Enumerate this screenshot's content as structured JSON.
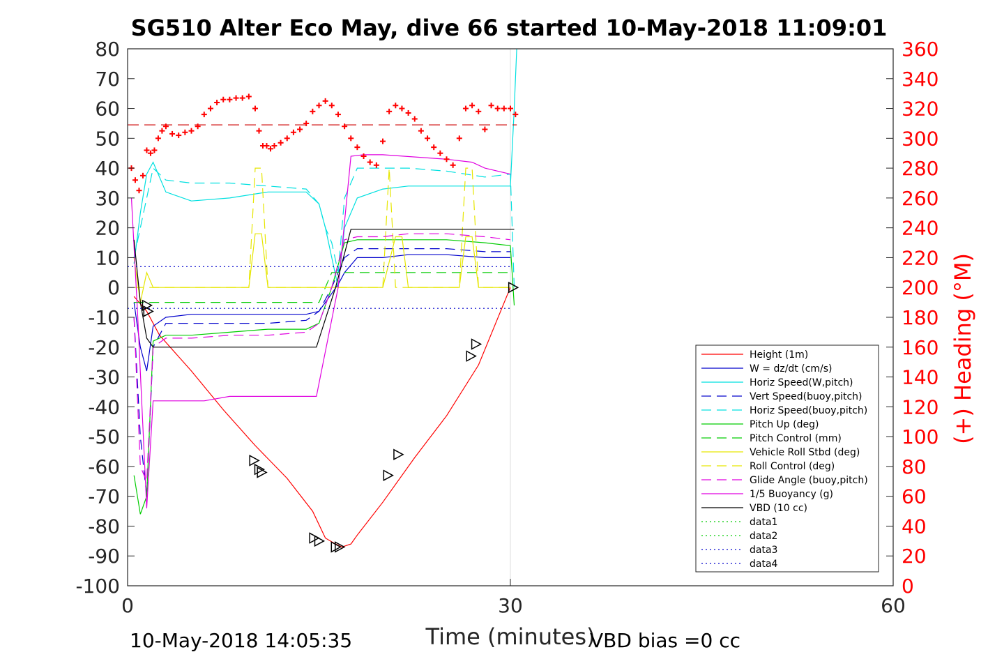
{
  "chart_data": {
    "type": "line",
    "title": "SG510 Alter Eco May, dive 66 started 10-May-2018 11:09:01",
    "xlabel": "Time (minutes)",
    "y2label": "(+) Heading (°M)",
    "xlim": [
      0,
      60
    ],
    "ylim": [
      -100,
      80
    ],
    "y2lim": [
      0,
      360
    ],
    "x_ticks": [
      "0",
      "30",
      "60"
    ],
    "y_ticks": [
      "80",
      "70",
      "60",
      "50",
      "40",
      "30",
      "20",
      "10",
      "0",
      "-10",
      "-20",
      "-30",
      "-40",
      "-50",
      "-60",
      "-70",
      "-80",
      "-90",
      "-100"
    ],
    "y2_ticks": [
      "360",
      "340",
      "320",
      "300",
      "280",
      "260",
      "240",
      "220",
      "200",
      "180",
      "160",
      "140",
      "120",
      "100",
      "80",
      "60",
      "40",
      "20",
      "0"
    ],
    "grid": "x-only",
    "legend_position": "lower-right",
    "footer_left": "10-May-2018 14:05:35",
    "footer_right": "VBD bias =0 cc",
    "series": [
      {
        "name": "Height (1m)",
        "color": "#ff0000",
        "dash": "solid",
        "x": [
          0.5,
          1.5,
          2.5,
          5,
          7.5,
          10,
          12.5,
          14.5,
          15.5,
          16.3,
          16.8,
          17.5,
          18,
          20,
          22.5,
          25,
          27.5,
          30
        ],
        "y": [
          -3,
          -8,
          -16,
          -28,
          -41,
          -53,
          -64,
          -75,
          -84,
          -86,
          -87,
          -86,
          -83,
          -72,
          -57,
          -43,
          -26,
          0
        ]
      },
      {
        "name": "W = dz/dt (cm/s)",
        "color": "#0000cc",
        "dash": "solid",
        "x": [
          0.5,
          1,
          1.5,
          2,
          3,
          5,
          8,
          11,
          14,
          15,
          16,
          16.5,
          17,
          18,
          20,
          22,
          25,
          28,
          30
        ],
        "y": [
          -5,
          -20,
          -28,
          -13,
          -10,
          -9,
          -9,
          -9,
          -9,
          -8,
          -2,
          1,
          5,
          10,
          10,
          11,
          11,
          10,
          10
        ]
      },
      {
        "name": "Horiz Speed(W,pitch)",
        "color": "#00e0e0",
        "dash": "solid",
        "x": [
          0.5,
          1,
          1.5,
          2,
          3,
          5,
          8,
          11,
          14,
          15,
          15.5,
          16,
          16.5,
          17,
          18,
          20,
          22,
          25,
          28,
          30,
          30.3,
          30.5
        ],
        "y": [
          8,
          25,
          38,
          42,
          32,
          29,
          30,
          32,
          32,
          28,
          20,
          10,
          0,
          20,
          30,
          33,
          34,
          34,
          34,
          34,
          60,
          80
        ]
      },
      {
        "name": "Vert Speed(buoy,pitch)",
        "color": "#0000cc",
        "dash": "dash",
        "x": [
          0.5,
          1,
          1.5,
          2,
          3,
          5,
          8,
          11,
          14,
          15,
          16,
          17,
          18,
          20,
          22,
          25,
          28,
          30
        ],
        "y": [
          -10,
          -50,
          -70,
          -20,
          -12,
          -12,
          -12,
          -12,
          -11,
          -8,
          0,
          10,
          13,
          13,
          13,
          13,
          12,
          12
        ]
      },
      {
        "name": "Horiz Speed(buoy,pitch)",
        "color": "#00e0e0",
        "dash": "dash",
        "x": [
          0.5,
          1,
          1.5,
          2,
          3,
          5,
          8,
          11,
          14,
          15,
          15.5,
          16,
          16.5,
          17,
          18,
          20,
          22,
          25,
          28,
          30,
          30.3
        ],
        "y": [
          10,
          20,
          30,
          40,
          36,
          35,
          35,
          34,
          33,
          28,
          20,
          15,
          5,
          30,
          40,
          40,
          40,
          39,
          37,
          38,
          0
        ]
      },
      {
        "name": "Pitch Up (deg)",
        "color": "#00cc00",
        "dash": "solid",
        "x": [
          0.5,
          1,
          1.5,
          2,
          3,
          5,
          8,
          11,
          14,
          15,
          16,
          17,
          18,
          20,
          22,
          25,
          28,
          30,
          30.3
        ],
        "y": [
          -63,
          -76,
          -70,
          -18,
          -16,
          -16,
          -15,
          -14,
          -14,
          -12,
          0,
          15,
          16,
          16,
          16,
          16,
          15,
          14,
          -6
        ]
      },
      {
        "name": "Pitch Control (mm)",
        "color": "#00cc00",
        "dash": "dash",
        "x": [
          0.5,
          1,
          1.5,
          2,
          5,
          10,
          15,
          16,
          17,
          20,
          25,
          30
        ],
        "y": [
          -5,
          -5,
          -5,
          -5,
          -5,
          -5,
          -5,
          5,
          5,
          5,
          5,
          5
        ]
      },
      {
        "name": "Vehicle Roll Stbd (deg)",
        "color": "#e6e600",
        "dash": "solid",
        "x": [
          0.5,
          1,
          1.5,
          2,
          3,
          5,
          9.5,
          10,
          10.5,
          11,
          14,
          15,
          16,
          20,
          21,
          21.5,
          22,
          26,
          26.5,
          27,
          27.5,
          30
        ],
        "y": [
          10,
          -5,
          5,
          0,
          0,
          0,
          0,
          18,
          18,
          0,
          0,
          0,
          0,
          0,
          17,
          17,
          0,
          0,
          17,
          17,
          0,
          0
        ]
      },
      {
        "name": "Roll Control (deg)",
        "color": "#e6e600",
        "dash": "dash",
        "x": [
          0.5,
          1,
          2,
          3,
          9.5,
          10,
          10.5,
          11,
          15,
          16,
          20,
          20.5,
          21,
          26,
          26.5,
          27,
          27.5,
          30
        ],
        "y": [
          0,
          0,
          0,
          0,
          0,
          40,
          40,
          0,
          0,
          0,
          0,
          40,
          0,
          0,
          40,
          40,
          0,
          0
        ]
      },
      {
        "name": "Glide Angle (buoy,pitch)",
        "color": "#e000e0",
        "dash": "dash",
        "x": [
          0.5,
          1,
          1.5,
          2,
          3,
          5,
          8,
          11,
          14,
          15,
          16,
          17,
          18,
          20,
          22,
          25,
          28,
          30
        ],
        "y": [
          -10,
          -60,
          -65,
          -20,
          -17,
          -17,
          -16,
          -16,
          -15,
          -12,
          0,
          16,
          17,
          17,
          18,
          18,
          17,
          16
        ]
      },
      {
        "name": "1/5 Buoyancy (g)",
        "color": "#e000e0",
        "dash": "solid",
        "x": [
          0.3,
          0.8,
          1.5,
          2,
          3,
          6,
          8,
          14.8,
          16.5,
          17.5,
          18.5,
          20,
          25,
          27,
          28,
          30
        ],
        "y": [
          30,
          -10,
          -74,
          -38,
          -38,
          -38,
          -36.5,
          -36.5,
          0,
          44,
          44.5,
          44.5,
          43,
          42,
          40,
          38
        ]
      },
      {
        "name": "VBD (10 cc)",
        "color": "#000000",
        "dash": "solid",
        "x": [
          0.5,
          1,
          1.5,
          2,
          8,
          14.8,
          16.3,
          17.5,
          18,
          25,
          30.3
        ],
        "y": [
          16,
          -5,
          -17,
          -20,
          -20,
          -20,
          0,
          19.5,
          19.5,
          19.5,
          19.5
        ]
      },
      {
        "name": "data1",
        "color": "#00cc00",
        "dash": "dot",
        "x": [],
        "y": []
      },
      {
        "name": "data2",
        "color": "#00cc00",
        "dash": "dot",
        "x": [],
        "y": []
      },
      {
        "name": "data3",
        "color": "#0000cc",
        "dash": "dot",
        "x": [
          0,
          30
        ],
        "y": [
          7,
          7
        ]
      },
      {
        "name": "data4",
        "color": "#0000cc",
        "dash": "dot",
        "x": [
          0,
          30
        ],
        "y": [
          -7,
          -7
        ]
      }
    ],
    "heading_series": {
      "color": "#ff0000",
      "marker": "+",
      "axis": "right",
      "mean_line_y2": 309,
      "x": [
        0.3,
        0.6,
        0.9,
        1.2,
        1.5,
        1.8,
        2.1,
        2.4,
        2.7,
        3.0,
        3.5,
        4,
        4.5,
        5,
        5.5,
        6,
        6.5,
        7,
        7.5,
        8,
        8.5,
        9,
        9.5,
        10,
        10.3,
        10.6,
        10.9,
        11.2,
        11.5,
        12,
        12.5,
        13,
        13.5,
        14,
        14.5,
        15,
        15.5,
        16,
        16.5,
        17,
        17.5,
        18,
        18.5,
        19,
        19.5,
        20,
        20.5,
        21,
        21.5,
        22,
        22.5,
        23,
        23.5,
        24,
        24.5,
        25,
        25.5,
        26,
        26.5,
        27,
        27.5,
        28,
        28.5,
        29,
        29.5,
        30,
        30.4
      ],
      "y": [
        280,
        272,
        265,
        275,
        292,
        290,
        292,
        300,
        305,
        308,
        303,
        302,
        304,
        305,
        308,
        316,
        320,
        324,
        326,
        326,
        327,
        327,
        328,
        320,
        305,
        295,
        295,
        293,
        295,
        297,
        300,
        304,
        306,
        310,
        318,
        322,
        325,
        322,
        316,
        308,
        300,
        294,
        288,
        284,
        282,
        298,
        318,
        322,
        320,
        317,
        313,
        305,
        300,
        294,
        290,
        286,
        282,
        300,
        320,
        322,
        318,
        306,
        322,
        320,
        320,
        320,
        316
      ]
    },
    "triangles": {
      "x": [
        1.5,
        1.6,
        9.9,
        10.3,
        10.5,
        14.6,
        15.0,
        16.3,
        16.6,
        20.4,
        21.2,
        26.9,
        27.3,
        30.2
      ],
      "y": [
        -6,
        -8,
        -58,
        -61,
        -62,
        -84,
        -85,
        -87,
        -87,
        -63,
        -56,
        -23,
        -19,
        0
      ]
    }
  }
}
